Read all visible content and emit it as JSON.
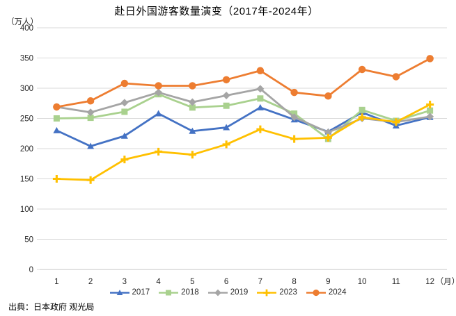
{
  "title": "赴日外国游客数量演变（2017年-2024年）",
  "source": "出典：日本政府 观光局",
  "chart_data": {
    "type": "line",
    "title": "赴日外国游客数量演变（2017年-2024年）",
    "ylabel": "（万人）",
    "xlabel": "（月）",
    "categories": [
      1,
      2,
      3,
      4,
      5,
      6,
      7,
      8,
      9,
      10,
      11,
      12
    ],
    "x_tick_labels": [
      "1",
      "2",
      "3",
      "4",
      "5",
      "6",
      "7",
      "8",
      "9",
      "10",
      "11",
      "12"
    ],
    "x_axis_suffix": "（月）",
    "ylim": [
      0,
      400
    ],
    "y_ticks": [
      0,
      50,
      100,
      150,
      200,
      250,
      300,
      350,
      400
    ],
    "grid": "horizontal",
    "legend_position": "bottom",
    "series": [
      {
        "name": "2017",
        "color": "#4472C4",
        "marker": "triangle",
        "values": [
          230,
          204,
          221,
          258,
          229,
          235,
          268,
          248,
          228,
          260,
          238,
          252
        ]
      },
      {
        "name": "2018",
        "color": "#A9D18E",
        "marker": "square",
        "values": [
          250,
          251,
          261,
          290,
          268,
          271,
          283,
          258,
          216,
          264,
          246,
          263
        ]
      },
      {
        "name": "2019",
        "color": "#A5A5A5",
        "marker": "diamond",
        "values": [
          269,
          260,
          276,
          293,
          277,
          288,
          299,
          252,
          227,
          250,
          244,
          253
        ]
      },
      {
        "name": "2023",
        "color": "#FFC000",
        "marker": "plus",
        "values": [
          150,
          148,
          182,
          195,
          190,
          207,
          232,
          216,
          218,
          252,
          244,
          273
        ]
      },
      {
        "name": "2024",
        "color": "#ED7D31",
        "marker": "circle",
        "values": [
          269,
          279,
          308,
          304,
          304,
          314,
          329,
          293,
          287,
          331,
          319,
          349
        ]
      }
    ],
    "colors": {
      "gridline": "#D9D9D9",
      "zero_axis": "#C6C6C6",
      "tick_text": "#262626"
    }
  }
}
